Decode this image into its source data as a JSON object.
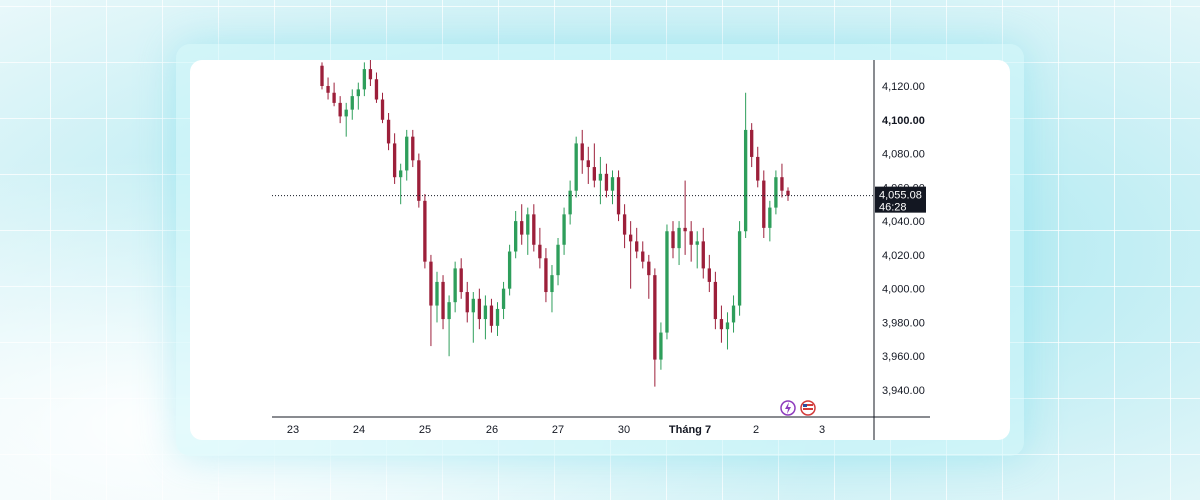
{
  "chart_data": {
    "type": "candlestick",
    "y_axis": {
      "ticks": [
        "4,120.00",
        "4,100.00",
        "4,080.00",
        "4,060.00",
        "4,040.00",
        "4,020.00",
        "4,000.00",
        "3,980.00",
        "3,960.00",
        "3,940.00"
      ],
      "tick_values": [
        4120,
        4100,
        4080,
        4060,
        4040,
        4020,
        4000,
        3980,
        3960,
        3940
      ],
      "ylim": [
        3925,
        4138
      ]
    },
    "x_axis": {
      "labels": [
        "23",
        "24",
        "25",
        "26",
        "27",
        "30",
        "Tháng 7",
        "2",
        "3"
      ]
    },
    "current_price": {
      "value": 4055.08,
      "label": "4,055.08",
      "countdown": "46:28"
    },
    "candles": [
      [
        4132,
        4134,
        4118,
        4120
      ],
      [
        4120,
        4125,
        4112,
        4116
      ],
      [
        4116,
        4122,
        4108,
        4110
      ],
      [
        4110,
        4114,
        4098,
        4102
      ],
      [
        4102,
        4110,
        4090,
        4106
      ],
      [
        4106,
        4118,
        4100,
        4114
      ],
      [
        4114,
        4122,
        4106,
        4118
      ],
      [
        4118,
        4134,
        4114,
        4130
      ],
      [
        4130,
        4136,
        4120,
        4124
      ],
      [
        4124,
        4128,
        4110,
        4112
      ],
      [
        4112,
        4116,
        4098,
        4100
      ],
      [
        4100,
        4104,
        4082,
        4086
      ],
      [
        4086,
        4092,
        4062,
        4066
      ],
      [
        4066,
        4074,
        4050,
        4070
      ],
      [
        4070,
        4094,
        4064,
        4090
      ],
      [
        4090,
        4094,
        4072,
        4076
      ],
      [
        4076,
        4080,
        4048,
        4052
      ],
      [
        4052,
        4056,
        4012,
        4016
      ],
      [
        4016,
        4020,
        3966,
        3990
      ],
      [
        3990,
        4010,
        3980,
        4004
      ],
      [
        4004,
        4008,
        3976,
        3982
      ],
      [
        3982,
        3996,
        3960,
        3992
      ],
      [
        3992,
        4016,
        3986,
        4012
      ],
      [
        4012,
        4018,
        3994,
        3998
      ],
      [
        3998,
        4004,
        3980,
        3986
      ],
      [
        3986,
        3998,
        3968,
        3994
      ],
      [
        3994,
        4000,
        3976,
        3982
      ],
      [
        3982,
        3996,
        3970,
        3990
      ],
      [
        3990,
        3994,
        3974,
        3978
      ],
      [
        3978,
        3992,
        3972,
        3988
      ],
      [
        3988,
        4004,
        3982,
        4000
      ],
      [
        4000,
        4026,
        3996,
        4022
      ],
      [
        4022,
        4046,
        4018,
        4040
      ],
      [
        4040,
        4050,
        4026,
        4032
      ],
      [
        4032,
        4048,
        4020,
        4044
      ],
      [
        4044,
        4050,
        4022,
        4026
      ],
      [
        4026,
        4036,
        4012,
        4018
      ],
      [
        4018,
        4024,
        3992,
        3998
      ],
      [
        3998,
        4014,
        3986,
        4008
      ],
      [
        4008,
        4030,
        4002,
        4026
      ],
      [
        4026,
        4048,
        4020,
        4044
      ],
      [
        4044,
        4064,
        4038,
        4058
      ],
      [
        4058,
        4090,
        4054,
        4086
      ],
      [
        4086,
        4094,
        4068,
        4076
      ],
      [
        4076,
        4084,
        4062,
        4072
      ],
      [
        4072,
        4086,
        4060,
        4064
      ],
      [
        4064,
        4078,
        4050,
        4068
      ],
      [
        4068,
        4074,
        4054,
        4058
      ],
      [
        4058,
        4070,
        4050,
        4066
      ],
      [
        4066,
        4070,
        4040,
        4044
      ],
      [
        4044,
        4050,
        4024,
        4032
      ],
      [
        4032,
        4040,
        4000,
        4028
      ],
      [
        4028,
        4036,
        4018,
        4022
      ],
      [
        4022,
        4028,
        4012,
        4016
      ],
      [
        4016,
        4020,
        3994,
        4008
      ],
      [
        4008,
        4012,
        3942,
        3958
      ],
      [
        3958,
        3980,
        3952,
        3974
      ],
      [
        3974,
        4038,
        3970,
        4034
      ],
      [
        4034,
        4040,
        4018,
        4024
      ],
      [
        4024,
        4040,
        4014,
        4036
      ],
      [
        4036,
        4064,
        4020,
        4034
      ],
      [
        4034,
        4040,
        4016,
        4026
      ],
      [
        4026,
        4034,
        4012,
        4028
      ],
      [
        4028,
        4036,
        4006,
        4012
      ],
      [
        4012,
        4020,
        3998,
        4004
      ],
      [
        4004,
        4010,
        3976,
        3982
      ],
      [
        3982,
        3990,
        3968,
        3976
      ],
      [
        3976,
        3986,
        3964,
        3980
      ],
      [
        3980,
        3996,
        3974,
        3990
      ],
      [
        3990,
        4040,
        3984,
        4034
      ],
      [
        4034,
        4116,
        4030,
        4094
      ],
      [
        4094,
        4098,
        4072,
        4078
      ],
      [
        4078,
        4084,
        4060,
        4064
      ],
      [
        4064,
        4070,
        4030,
        4036
      ],
      [
        4036,
        4052,
        4028,
        4048
      ],
      [
        4048,
        4070,
        4044,
        4066
      ],
      [
        4066,
        4074,
        4054,
        4058
      ],
      [
        4058,
        4060,
        4052,
        4055.08
      ]
    ]
  }
}
